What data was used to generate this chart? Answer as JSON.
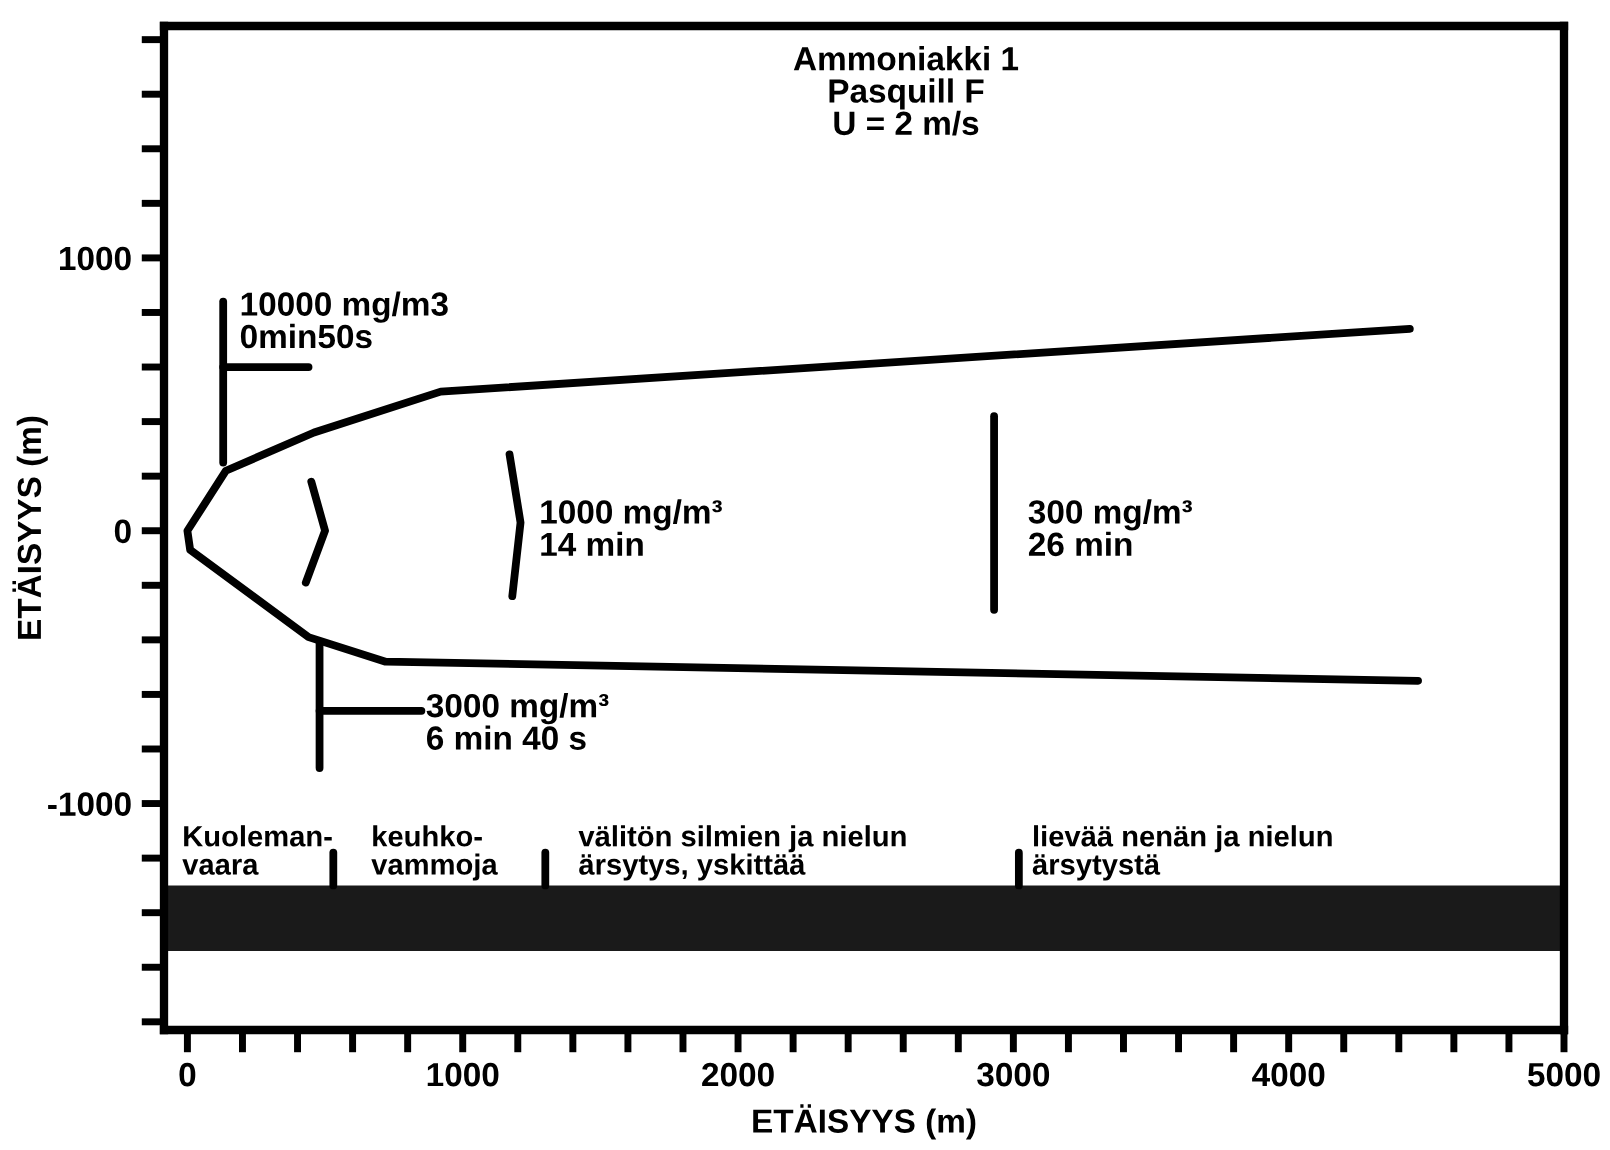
{
  "chart_data": {
    "type": "line",
    "xlabel": "ETÄISYYS (m)",
    "ylabel": "ETÄISYYS (m)",
    "xlim": [
      -85,
      5000
    ],
    "ylim": [
      -1830,
      1850
    ],
    "xticks": [
      0,
      {
        "value": 200,
        "label": null
      },
      {
        "value": 400,
        "label": null
      },
      {
        "value": 600,
        "label": null
      },
      {
        "value": 800,
        "label": null
      },
      1000,
      {
        "value": 1200,
        "label": null
      },
      {
        "value": 1400,
        "label": null
      },
      {
        "value": 1600,
        "label": null
      },
      {
        "value": 1800,
        "label": null
      },
      2000,
      {
        "value": 2200,
        "label": null
      },
      {
        "value": 2400,
        "label": null
      },
      {
        "value": 2600,
        "label": null
      },
      {
        "value": 2800,
        "label": null
      },
      3000,
      {
        "value": 3200,
        "label": null
      },
      {
        "value": 3400,
        "label": null
      },
      {
        "value": 3600,
        "label": null
      },
      {
        "value": 3800,
        "label": null
      },
      4000,
      {
        "value": 4200,
        "label": null
      },
      {
        "value": 4400,
        "label": null
      },
      {
        "value": 4600,
        "label": null
      },
      {
        "value": 4800,
        "label": null
      },
      5000
    ],
    "yticks": [
      {
        "value": -1800,
        "label": null
      },
      {
        "value": -1600,
        "label": null
      },
      {
        "value": -1400,
        "label": null
      },
      {
        "value": -1200,
        "label": null
      },
      -1000,
      {
        "value": -800,
        "label": null
      },
      {
        "value": -600,
        "label": null
      },
      {
        "value": -400,
        "label": null
      },
      {
        "value": -200,
        "label": null
      },
      0,
      {
        "value": 200,
        "label": null
      },
      {
        "value": 400,
        "label": null
      },
      {
        "value": 600,
        "label": null
      },
      {
        "value": 800,
        "label": null
      },
      1000,
      {
        "value": 1200,
        "label": null
      },
      {
        "value": 1400,
        "label": null
      },
      {
        "value": 1600,
        "label": null
      },
      {
        "value": 1800,
        "label": null
      }
    ],
    "grid": false,
    "legend": false,
    "marker": "none",
    "line_style": "solid",
    "series": [
      {
        "color": "#000000",
        "x": [
          4440,
          920,
          460,
          140,
          0,
          10,
          440,
          720,
          4470
        ],
        "values": [
          740,
          510,
          360,
          220,
          0,
          -70,
          -390,
          -480,
          -550
        ]
      },
      {
        "color": "#000000",
        "x": [
          450,
          500,
          430
        ],
        "values": [
          180,
          0,
          -190
        ]
      },
      {
        "color": "#000000",
        "x": [
          1170,
          1210,
          1180
        ],
        "values": [
          280,
          30,
          -240
        ]
      },
      {
        "color": "#000000",
        "x": [
          2930,
          2930
        ],
        "values": [
          420,
          -290
        ]
      },
      {
        "color": "#000000",
        "x": [
          130,
          130
        ],
        "values": [
          840,
          250
        ]
      },
      {
        "color": "#000000",
        "x": [
          130,
          440
        ],
        "values": [
          600,
          600
        ]
      },
      {
        "color": "#000000",
        "x": [
          480,
          480
        ],
        "values": [
          -410,
          -870
        ]
      },
      {
        "color": "#000000",
        "x": [
          480,
          850
        ],
        "values": [
          -660,
          -660
        ]
      },
      {
        "color": "#000000",
        "x": [
          530,
          530
        ],
        "values": [
          -1300,
          -1180
        ]
      },
      {
        "color": "#000000",
        "x": [
          1300,
          1300
        ],
        "values": [
          -1300,
          -1180
        ]
      },
      {
        "color": "#000000",
        "x": [
          3020,
          3020
        ],
        "values": [
          -1300,
          -1180
        ]
      }
    ],
    "bands": [
      {
        "axis": "y",
        "from": -1540,
        "to": -1300,
        "color": "#1a1a1a"
      }
    ],
    "annotations": [
      "Ammoniakki 1\nPasquill F\nU = 2 m/s",
      "10000 mg/m3\n0min50s",
      "1000 mg/m³\n14 min",
      "300 mg/m³\n26 min",
      "3000 mg/m³\n6 min 40 s",
      "Kuoleman-\nvaara",
      "keuhko-\nvammoja",
      "välitön silmien ja nielun\närsytys, yskittää",
      "lievää nenän ja nielun\närsytystä"
    ]
  }
}
